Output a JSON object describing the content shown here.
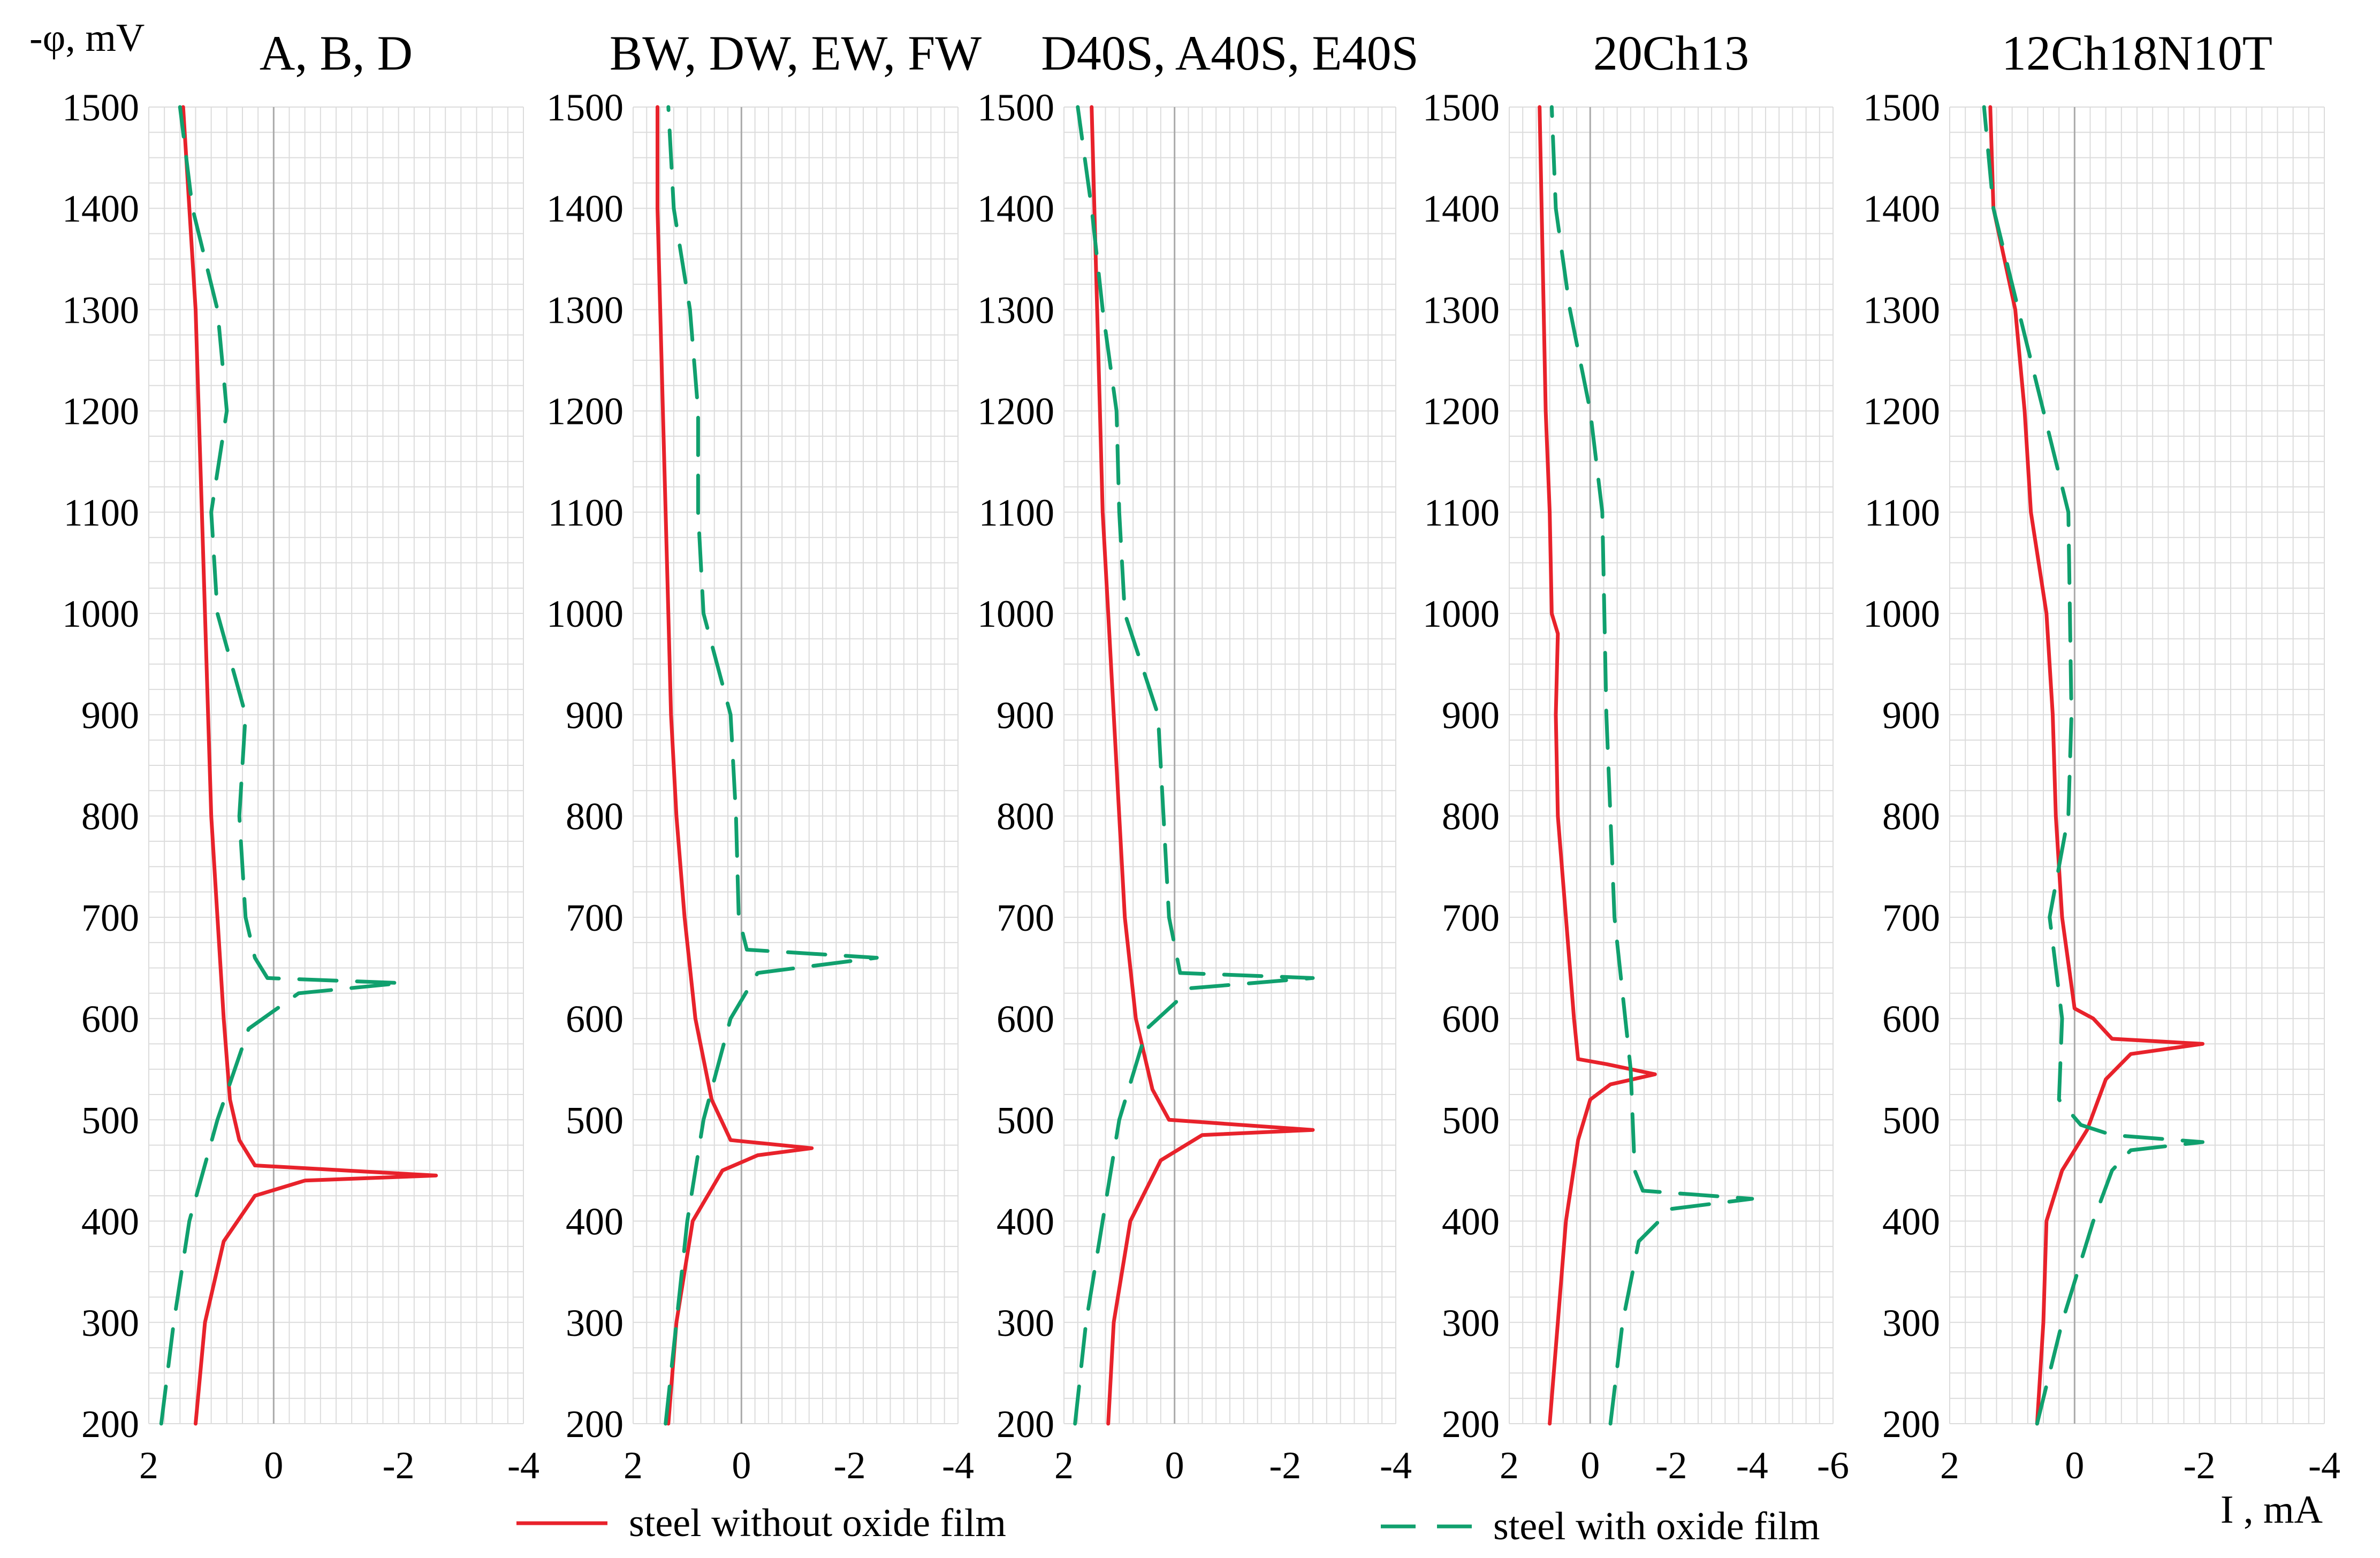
{
  "figure": {
    "y_axis_label": "-φ, mV",
    "x_axis_label": "I , mA",
    "colors": {
      "without": "#e8222b",
      "with": "#10a06e",
      "grid": "#dcdcdc",
      "zero": "#aaaaaa"
    }
  },
  "legend": {
    "without_label": "steel without oxide film",
    "with_label": "steel with oxide film"
  },
  "chart_data": [
    {
      "type": "line",
      "title": "A, B, D",
      "xlim": [
        2,
        -4
      ],
      "ylim": [
        200,
        1500
      ],
      "xticks": [
        "2",
        "0",
        "-2",
        "-4"
      ],
      "xtick_values": [
        2,
        0,
        -2,
        -4
      ],
      "yticks": [
        "1500",
        "1400",
        "1300",
        "1200",
        "1100",
        "1000",
        "900",
        "800",
        "700",
        "600",
        "500",
        "400",
        "300",
        "200"
      ],
      "ytick_values": [
        1500,
        1400,
        1300,
        1200,
        1100,
        1000,
        900,
        800,
        700,
        600,
        500,
        400,
        300,
        200
      ],
      "series": [
        {
          "name": "steel without oxide film",
          "points": [
            [
              1.25,
              200
            ],
            [
              1.1,
              300
            ],
            [
              0.8,
              380
            ],
            [
              0.3,
              425
            ],
            [
              -0.5,
              440
            ],
            [
              -2.6,
              445
            ],
            [
              0.3,
              455
            ],
            [
              0.55,
              480
            ],
            [
              0.7,
              520
            ],
            [
              0.8,
              600
            ],
            [
              0.9,
              700
            ],
            [
              1.0,
              800
            ],
            [
              1.05,
              900
            ],
            [
              1.1,
              1000
            ],
            [
              1.15,
              1100
            ],
            [
              1.2,
              1200
            ],
            [
              1.25,
              1300
            ],
            [
              1.35,
              1400
            ],
            [
              1.45,
              1500
            ]
          ]
        },
        {
          "name": "steel with oxide film",
          "points": [
            [
              1.8,
              200
            ],
            [
              1.6,
              300
            ],
            [
              1.35,
              400
            ],
            [
              0.9,
              500
            ],
            [
              0.4,
              590
            ],
            [
              -0.4,
              625
            ],
            [
              -2.05,
              635
            ],
            [
              0.1,
              640
            ],
            [
              0.3,
              660
            ],
            [
              0.45,
              700
            ],
            [
              0.55,
              800
            ],
            [
              0.45,
              900
            ],
            [
              0.9,
              1000
            ],
            [
              1.0,
              1100
            ],
            [
              0.75,
              1200
            ],
            [
              0.9,
              1300
            ],
            [
              1.3,
              1400
            ],
            [
              1.5,
              1500
            ]
          ]
        }
      ]
    },
    {
      "type": "line",
      "title": "BW, DW, EW, FW",
      "xlim": [
        2,
        -4
      ],
      "ylim": [
        200,
        1500
      ],
      "xticks": [
        "2",
        "0",
        "-2",
        "-4"
      ],
      "xtick_values": [
        2,
        0,
        -2,
        -4
      ],
      "yticks": [
        "1500",
        "1400",
        "1300",
        "1200",
        "1100",
        "1000",
        "900",
        "800",
        "700",
        "600",
        "500",
        "400",
        "300",
        "200"
      ],
      "ytick_values": [
        1500,
        1400,
        1300,
        1200,
        1100,
        1000,
        900,
        800,
        700,
        600,
        500,
        400,
        300,
        200
      ],
      "series": [
        {
          "name": "steel without oxide film",
          "points": [
            [
              1.35,
              200
            ],
            [
              1.2,
              300
            ],
            [
              0.9,
              400
            ],
            [
              0.35,
              450
            ],
            [
              -0.3,
              465
            ],
            [
              -1.3,
              472
            ],
            [
              0.2,
              480
            ],
            [
              0.55,
              520
            ],
            [
              0.85,
              600
            ],
            [
              1.05,
              700
            ],
            [
              1.2,
              800
            ],
            [
              1.3,
              900
            ],
            [
              1.35,
              1000
            ],
            [
              1.4,
              1100
            ],
            [
              1.45,
              1200
            ],
            [
              1.5,
              1300
            ],
            [
              1.55,
              1400
            ],
            [
              1.55,
              1500
            ]
          ]
        },
        {
          "name": "steel with oxide film",
          "points": [
            [
              1.4,
              200
            ],
            [
              1.2,
              300
            ],
            [
              1.0,
              400
            ],
            [
              0.7,
              500
            ],
            [
              0.2,
              600
            ],
            [
              -0.3,
              645
            ],
            [
              -2.5,
              660
            ],
            [
              -0.1,
              668
            ],
            [
              0.05,
              700
            ],
            [
              0.1,
              800
            ],
            [
              0.2,
              900
            ],
            [
              0.7,
              1000
            ],
            [
              0.8,
              1100
            ],
            [
              0.8,
              1200
            ],
            [
              0.95,
              1300
            ],
            [
              1.25,
              1400
            ],
            [
              1.35,
              1500
            ]
          ]
        }
      ]
    },
    {
      "type": "line",
      "title": "D40S, A40S, E40S",
      "xlim": [
        2,
        -4
      ],
      "ylim": [
        200,
        1500
      ],
      "xticks": [
        "2",
        "0",
        "-2",
        "-4"
      ],
      "xtick_values": [
        2,
        0,
        -2,
        -4
      ],
      "yticks": [
        "1500",
        "1400",
        "1300",
        "1200",
        "1100",
        "1000",
        "900",
        "800",
        "700",
        "600",
        "500",
        "400",
        "300",
        "200"
      ],
      "ytick_values": [
        1500,
        1400,
        1300,
        1200,
        1100,
        1000,
        900,
        800,
        700,
        600,
        500,
        400,
        300,
        200
      ],
      "series": [
        {
          "name": "steel without oxide film",
          "points": [
            [
              1.2,
              200
            ],
            [
              1.1,
              300
            ],
            [
              0.8,
              400
            ],
            [
              0.25,
              460
            ],
            [
              -0.5,
              485
            ],
            [
              -2.5,
              490
            ],
            [
              0.1,
              500
            ],
            [
              0.4,
              530
            ],
            [
              0.7,
              600
            ],
            [
              0.9,
              700
            ],
            [
              1.0,
              800
            ],
            [
              1.1,
              900
            ],
            [
              1.2,
              1000
            ],
            [
              1.3,
              1100
            ],
            [
              1.35,
              1200
            ],
            [
              1.4,
              1300
            ],
            [
              1.45,
              1400
            ],
            [
              1.5,
              1500
            ]
          ]
        },
        {
          "name": "steel with oxide film",
          "points": [
            [
              1.8,
              200
            ],
            [
              1.6,
              300
            ],
            [
              1.3,
              400
            ],
            [
              1.0,
              500
            ],
            [
              0.5,
              590
            ],
            [
              -0.3,
              630
            ],
            [
              -2.5,
              640
            ],
            [
              -0.1,
              645
            ],
            [
              0.1,
              700
            ],
            [
              0.2,
              800
            ],
            [
              0.3,
              900
            ],
            [
              0.9,
              1000
            ],
            [
              1.0,
              1100
            ],
            [
              1.05,
              1200
            ],
            [
              1.3,
              1300
            ],
            [
              1.5,
              1400
            ],
            [
              1.75,
              1500
            ]
          ]
        }
      ]
    },
    {
      "type": "line",
      "title": "20Ch13",
      "xlim": [
        2,
        -6
      ],
      "ylim": [
        200,
        1500
      ],
      "xticks": [
        "2",
        "0",
        "-2",
        "-4",
        "-6"
      ],
      "xtick_values": [
        2,
        0,
        -2,
        -4,
        -6
      ],
      "yticks": [
        "1500",
        "1400",
        "1300",
        "1200",
        "1100",
        "1000",
        "900",
        "800",
        "700",
        "600",
        "500",
        "400",
        "300",
        "200"
      ],
      "ytick_values": [
        1500,
        1400,
        1300,
        1200,
        1100,
        1000,
        900,
        800,
        700,
        600,
        500,
        400,
        300,
        200
      ],
      "series": [
        {
          "name": "steel without oxide film",
          "points": [
            [
              1.0,
              200
            ],
            [
              0.8,
              300
            ],
            [
              0.6,
              400
            ],
            [
              0.3,
              480
            ],
            [
              0.0,
              520
            ],
            [
              -0.5,
              535
            ],
            [
              -1.6,
              545
            ],
            [
              -0.4,
              555
            ],
            [
              0.3,
              560
            ],
            [
              0.4,
              600
            ],
            [
              0.6,
              700
            ],
            [
              0.8,
              800
            ],
            [
              0.85,
              900
            ],
            [
              0.8,
              980
            ],
            [
              0.95,
              1000
            ],
            [
              1.0,
              1100
            ],
            [
              1.1,
              1200
            ],
            [
              1.15,
              1300
            ],
            [
              1.2,
              1400
            ],
            [
              1.25,
              1500
            ]
          ]
        },
        {
          "name": "steel with oxide film",
          "points": [
            [
              -0.5,
              200
            ],
            [
              -0.8,
              300
            ],
            [
              -1.2,
              380
            ],
            [
              -2.0,
              412
            ],
            [
              -4.0,
              422
            ],
            [
              -1.3,
              430
            ],
            [
              -1.1,
              450
            ],
            [
              -1.0,
              550
            ],
            [
              -0.6,
              700
            ],
            [
              -0.4,
              900
            ],
            [
              -0.3,
              1100
            ],
            [
              0.0,
              1200
            ],
            [
              0.5,
              1300
            ],
            [
              0.85,
              1400
            ],
            [
              0.95,
              1500
            ]
          ]
        }
      ]
    },
    {
      "type": "line",
      "title": "12Ch18N10T",
      "xlim": [
        2,
        -4
      ],
      "ylim": [
        200,
        1500
      ],
      "xticks": [
        "2",
        "0",
        "-2",
        "-4"
      ],
      "xtick_values": [
        2,
        0,
        -2,
        -4
      ],
      "yticks": [
        "1500",
        "1400",
        "1300",
        "1200",
        "1100",
        "1000",
        "900",
        "800",
        "700",
        "600",
        "500",
        "400",
        "300",
        "200"
      ],
      "ytick_values": [
        1500,
        1400,
        1300,
        1200,
        1100,
        1000,
        900,
        800,
        700,
        600,
        500,
        400,
        300,
        200
      ],
      "series": [
        {
          "name": "steel without oxide film",
          "points": [
            [
              0.6,
              200
            ],
            [
              0.5,
              300
            ],
            [
              0.45,
              400
            ],
            [
              0.2,
              450
            ],
            [
              -0.2,
              490
            ],
            [
              -0.5,
              540
            ],
            [
              -0.9,
              565
            ],
            [
              -2.05,
              575
            ],
            [
              -0.6,
              580
            ],
            [
              -0.3,
              600
            ],
            [
              0.0,
              610
            ],
            [
              0.2,
              700
            ],
            [
              0.3,
              800
            ],
            [
              0.35,
              900
            ],
            [
              0.45,
              1000
            ],
            [
              0.7,
              1100
            ],
            [
              0.8,
              1200
            ],
            [
              0.95,
              1300
            ],
            [
              1.3,
              1400
            ],
            [
              1.35,
              1500
            ]
          ]
        },
        {
          "name": "steel with oxide film",
          "points": [
            [
              0.6,
              200
            ],
            [
              0.2,
              300
            ],
            [
              -0.3,
              400
            ],
            [
              -0.6,
              450
            ],
            [
              -0.9,
              470
            ],
            [
              -2.05,
              478
            ],
            [
              -0.6,
              485
            ],
            [
              -0.1,
              495
            ],
            [
              0.25,
              520
            ],
            [
              0.2,
              600
            ],
            [
              0.4,
              700
            ],
            [
              0.1,
              800
            ],
            [
              0.05,
              900
            ],
            [
              0.1,
              1100
            ],
            [
              0.5,
              1200
            ],
            [
              0.9,
              1300
            ],
            [
              1.3,
              1400
            ],
            [
              1.45,
              1500
            ]
          ]
        }
      ]
    }
  ]
}
